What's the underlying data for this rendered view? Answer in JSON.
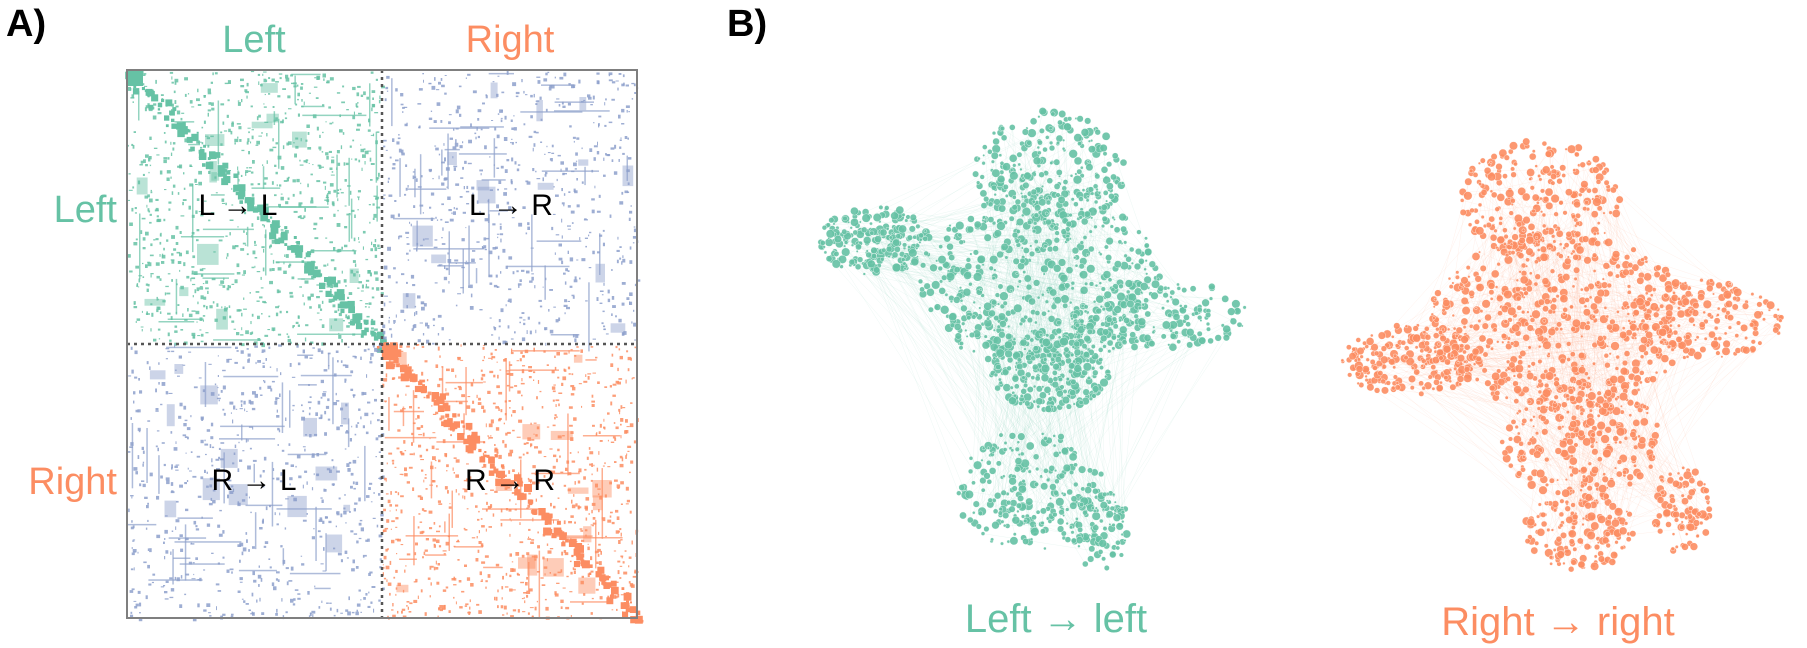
{
  "colors": {
    "left": "#66c2a5",
    "right": "#fc8d62",
    "contra": "#8da0cb",
    "frame": "#7f7f7f"
  },
  "panel_a": {
    "label": "A)",
    "col_labels": [
      "Left",
      "Right"
    ],
    "row_labels": [
      "Left",
      "Right"
    ],
    "quadrants": [
      {
        "id": "LL",
        "text": "L → L",
        "color": "left"
      },
      {
        "id": "LR",
        "text": "L → R",
        "color": "contra"
      },
      {
        "id": "RL",
        "text": "R → L",
        "color": "contra"
      },
      {
        "id": "RR",
        "text": "R → R",
        "color": "right"
      }
    ]
  },
  "panel_b": {
    "label": "B)",
    "networks": [
      {
        "id": "left-network",
        "caption": "Left → left",
        "color": "left"
      },
      {
        "id": "right-network",
        "caption": "Right → right",
        "color": "right"
      }
    ]
  }
}
